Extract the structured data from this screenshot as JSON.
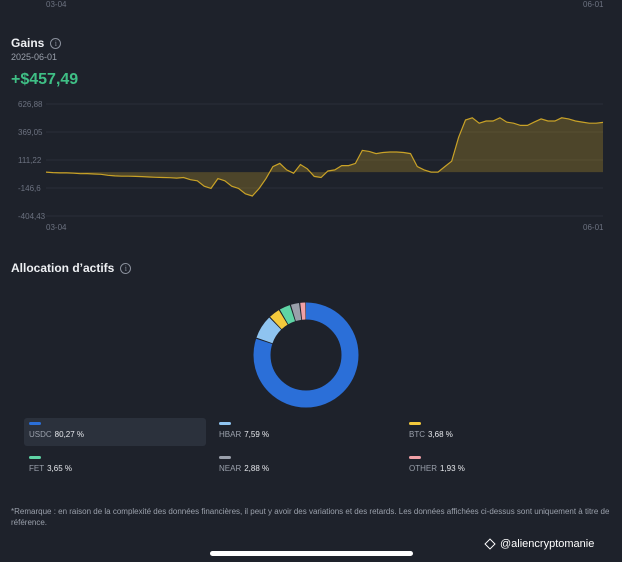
{
  "top_chart_axis": {
    "x_start": "03-04",
    "x_end": "06-01"
  },
  "gains": {
    "title": "Gains",
    "info_icon": "info-icon",
    "date": "2025-06-01",
    "value": "+$457,49"
  },
  "chart_data": {
    "type": "area",
    "title": "",
    "xlabel": "",
    "ylabel": "",
    "x_tick_labels": [
      "03-04",
      "06-01"
    ],
    "y_tick_labels": [
      "626,88",
      "369,05",
      "111,22",
      "-146,6",
      "-404,43"
    ],
    "ylim": [
      -404.43,
      626.88
    ],
    "grid": true,
    "colors": {
      "line": "#c9a227",
      "fill": "#c9a227"
    },
    "series": [
      {
        "values": [
          0,
          -5,
          -8,
          -8,
          -10,
          -15,
          -14,
          -18,
          -20,
          -30,
          -35,
          -38,
          -38,
          -40,
          -42,
          -45,
          -48,
          -50,
          -52,
          -55,
          -50,
          -70,
          -80,
          -130,
          -150,
          -60,
          -80,
          -130,
          -150,
          -200,
          -220,
          -150,
          -60,
          50,
          80,
          20,
          -10,
          70,
          30,
          -40,
          -50,
          10,
          20,
          60,
          60,
          80,
          200,
          190,
          170,
          180,
          185,
          185,
          180,
          170,
          50,
          20,
          0,
          0,
          50,
          100,
          320,
          480,
          500,
          450,
          470,
          470,
          500,
          460,
          450,
          430,
          430,
          460,
          490,
          470,
          470,
          500,
          490,
          470,
          460,
          450,
          450,
          457.49
        ]
      }
    ]
  },
  "allocation": {
    "title": "Allocation d’actifs",
    "info_icon": "info-icon",
    "assets": [
      {
        "name": "USDC",
        "pct": "80,27 %",
        "value": 80.27,
        "color": "#2b6fd8"
      },
      {
        "name": "HBAR",
        "pct": "7,59 %",
        "value": 7.59,
        "color": "#8fc4f0"
      },
      {
        "name": "BTC",
        "pct": "3,68 %",
        "value": 3.68,
        "color": "#f3c93c"
      },
      {
        "name": "FET",
        "pct": "3,65 %",
        "value": 3.65,
        "color": "#5fd4a5"
      },
      {
        "name": "NEAR",
        "pct": "2,88 %",
        "value": 2.88,
        "color": "#9aa0ab"
      },
      {
        "name": "OTHER",
        "pct": "1,93 %",
        "value": 1.93,
        "color": "#f0a0a6"
      }
    ]
  },
  "remark": "*Remarque : en raison de la complexité des données financières, il peut y avoir des variations et des retards. Les données affichées ci-dessus sont uniquement à titre de référence.",
  "watermark": "@aliencryptomanie"
}
